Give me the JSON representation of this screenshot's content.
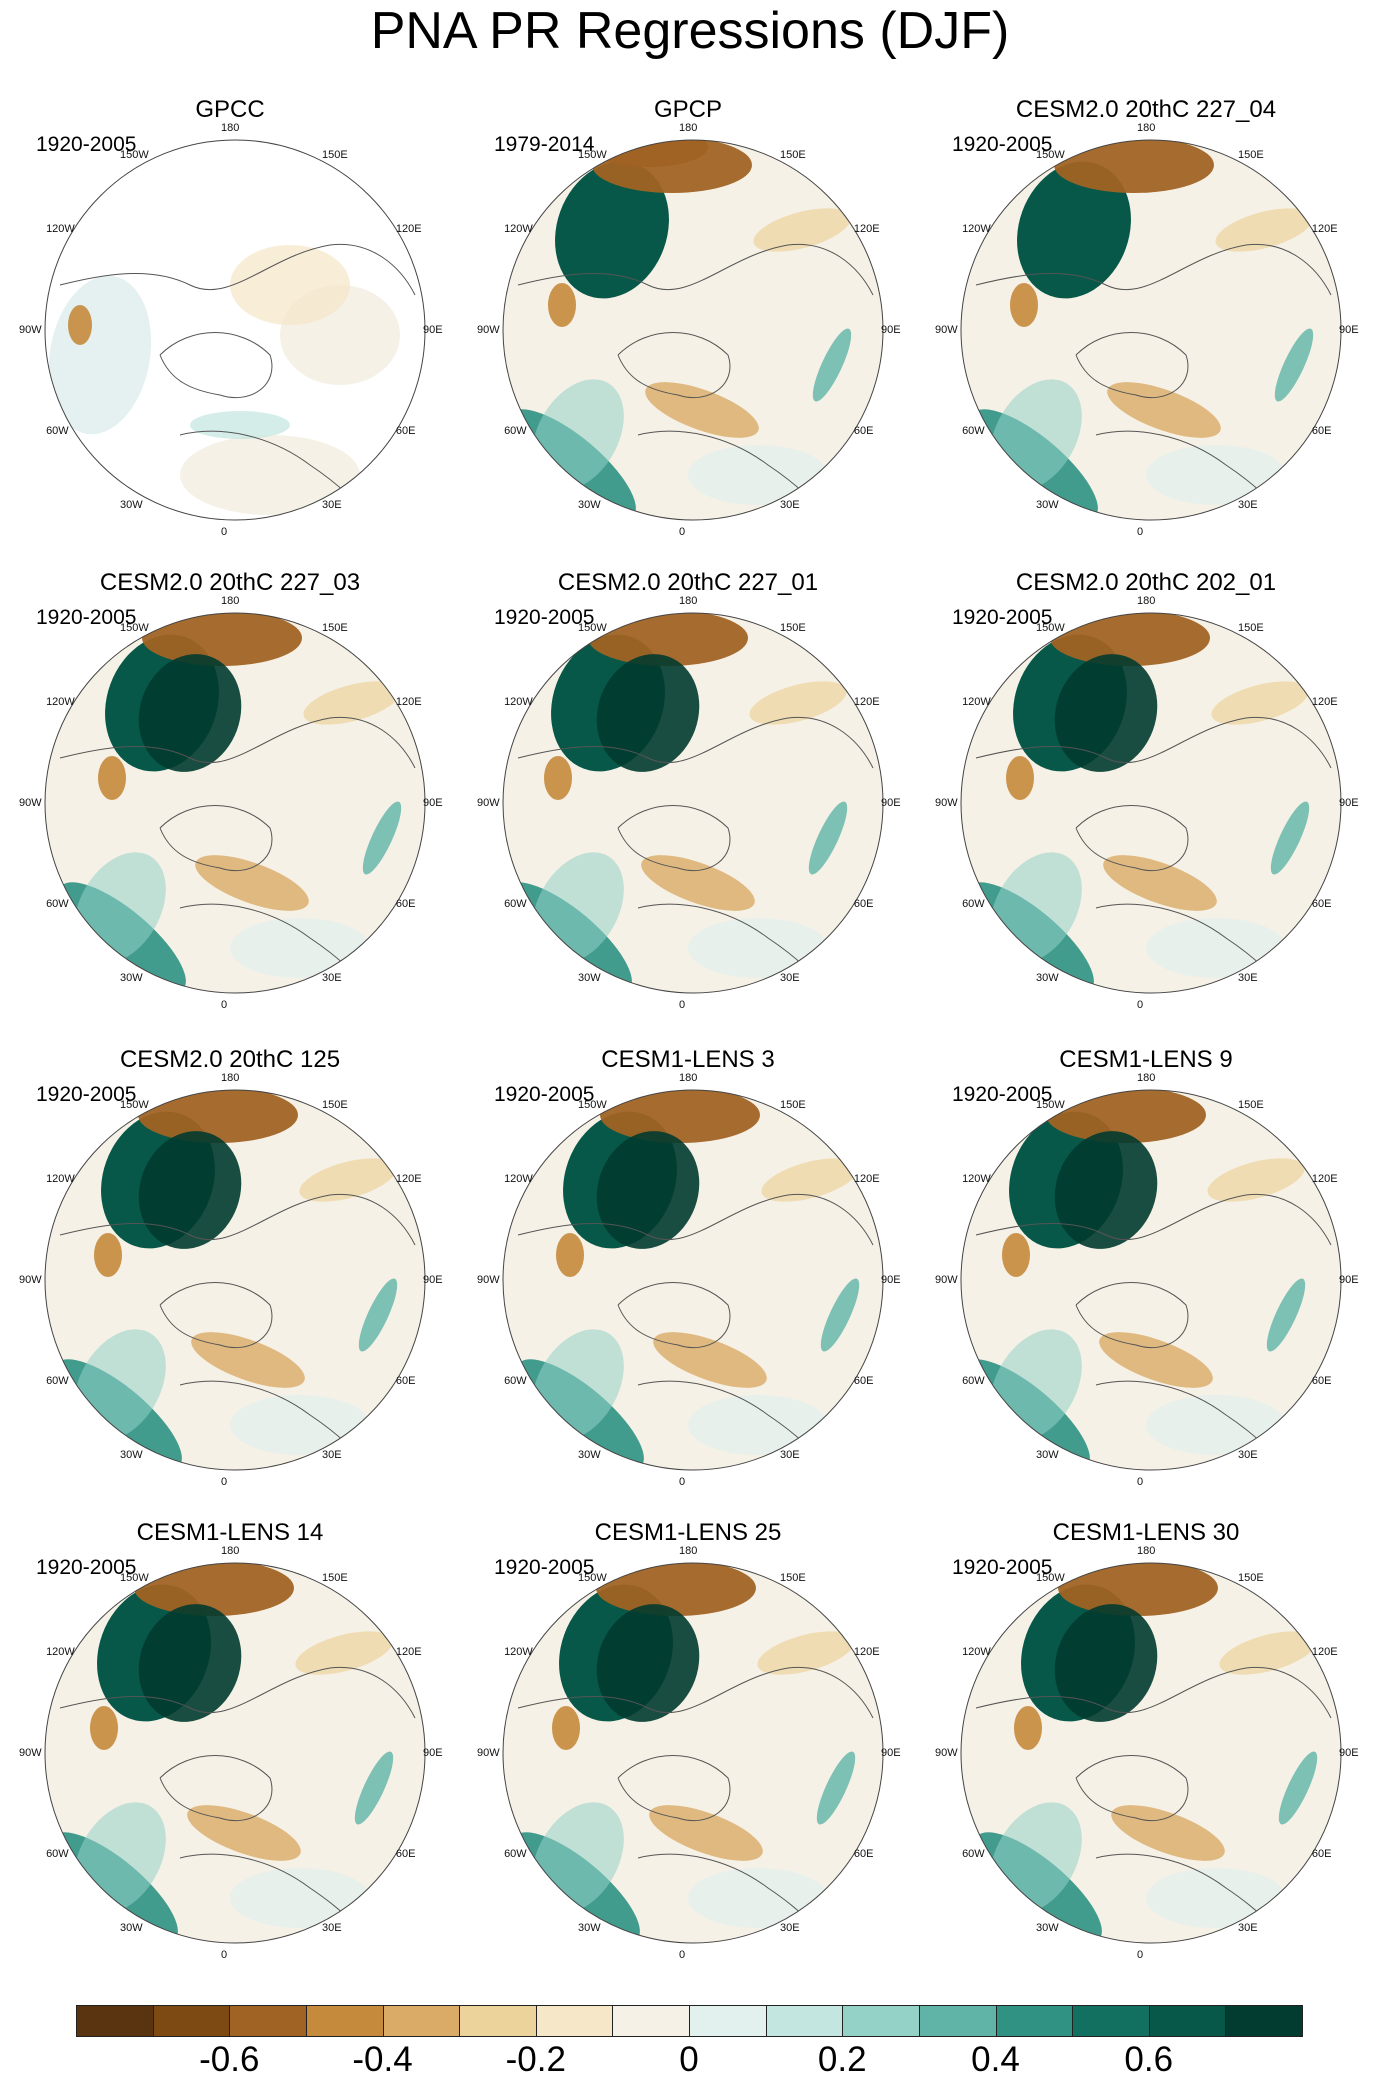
{
  "title": "PNA PR Regressions (DJF)",
  "lon_labels": [
    "180",
    "150E",
    "120E",
    "90E",
    "60E",
    "30E",
    "0",
    "30W",
    "60W",
    "90W",
    "120W",
    "150W"
  ],
  "panels": [
    {
      "title": "GPCC",
      "years": "1920-2005"
    },
    {
      "title": "GPCP",
      "years": "1979-2014"
    },
    {
      "title": "CESM2.0 20thC 227_04",
      "years": "1920-2005"
    },
    {
      "title": "CESM2.0 20thC 227_03",
      "years": "1920-2005"
    },
    {
      "title": "CESM2.0 20thC 227_01",
      "years": "1920-2005"
    },
    {
      "title": "CESM2.0 20thC 202_01",
      "years": "1920-2005"
    },
    {
      "title": "CESM2.0 20thC 125",
      "years": "1920-2005"
    },
    {
      "title": "CESM1-LENS 3",
      "years": "1920-2005"
    },
    {
      "title": "CESM1-LENS 9",
      "years": "1920-2005"
    },
    {
      "title": "CESM1-LENS 14",
      "years": "1920-2005"
    },
    {
      "title": "CESM1-LENS 25",
      "years": "1920-2005"
    },
    {
      "title": "CESM1-LENS 30",
      "years": "1920-2005"
    }
  ],
  "colorbar": {
    "colors": [
      "#5a3310",
      "#7d4a14",
      "#a16324",
      "#c58a3c",
      "#d9ab66",
      "#ecd39c",
      "#f5e7c7",
      "#f6f1e6",
      "#e2f0ee",
      "#c3e6e0",
      "#94d2c8",
      "#5fb4a7",
      "#2f9283",
      "#11705f",
      "#075848",
      "#023b2f"
    ],
    "tick_labels": [
      "-0.6",
      "-0.4",
      "-0.2",
      "0",
      "0.2",
      "0.4",
      "0.6"
    ]
  }
}
